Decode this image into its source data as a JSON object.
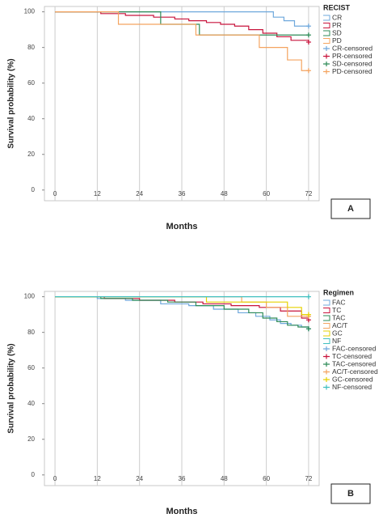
{
  "chart_data": [
    {
      "type": "step",
      "y_label": "Survival probability (%)",
      "x_label": "Months",
      "legend_title": "RECIST",
      "panel_label": "A",
      "xlim": [
        -3,
        75
      ],
      "ylim": [
        -6,
        103
      ],
      "xticks": [
        0,
        12,
        24,
        36,
        48,
        60,
        72
      ],
      "yticks": [
        0,
        20,
        40,
        60,
        80,
        100
      ],
      "grid": true,
      "series": [
        {
          "name": "CR",
          "color": "#6fa8dc",
          "x": [
            0,
            62,
            65,
            68,
            72
          ],
          "values": [
            100,
            97,
            95,
            92,
            92
          ],
          "censored": {
            "name": "CR-censored",
            "x": [
              72
            ],
            "values": [
              92
            ]
          }
        },
        {
          "name": "PR",
          "color": "#c8143c",
          "x": [
            0,
            13,
            20,
            28,
            34,
            38,
            43,
            47,
            51,
            55,
            59,
            63,
            67,
            72
          ],
          "values": [
            100,
            99,
            98,
            97,
            96,
            95,
            94,
            93,
            92,
            90,
            88,
            86,
            84,
            83
          ],
          "censored": {
            "name": "PR-censored",
            "x": [
              72
            ],
            "values": [
              83
            ]
          }
        },
        {
          "name": "SD",
          "color": "#2e8b57",
          "x": [
            0,
            30,
            41,
            72
          ],
          "values": [
            100,
            93,
            87,
            87
          ],
          "censored": {
            "name": "SD-censored",
            "x": [
              72
            ],
            "values": [
              87
            ]
          }
        },
        {
          "name": "PD",
          "color": "#f4a460",
          "x": [
            0,
            18,
            40,
            58,
            66,
            70,
            72
          ],
          "values": [
            100,
            93,
            87,
            80,
            73,
            67,
            67
          ],
          "censored": {
            "name": "PD-censored",
            "x": [
              72
            ],
            "values": [
              67
            ]
          }
        }
      ]
    },
    {
      "type": "step",
      "y_label": "Survival probability (%)",
      "x_label": "Months",
      "legend_title": "Regimen",
      "panel_label": "B",
      "xlim": [
        -3,
        75
      ],
      "ylim": [
        -6,
        103
      ],
      "xticks": [
        0,
        12,
        24,
        36,
        48,
        60,
        72
      ],
      "yticks": [
        0,
        20,
        40,
        60,
        80,
        100
      ],
      "grid": true,
      "series": [
        {
          "name": "FAC",
          "color": "#6fa8dc",
          "x": [
            0,
            12,
            20,
            30,
            38,
            45,
            52,
            57,
            61,
            64,
            67,
            70,
            72
          ],
          "values": [
            100,
            99,
            98,
            96,
            95,
            93,
            91,
            89,
            87,
            85,
            84,
            83,
            82
          ],
          "censored": {
            "name": "FAC-censored",
            "x": [
              72
            ],
            "values": [
              82
            ]
          }
        },
        {
          "name": "TC",
          "color": "#c8143c",
          "x": [
            0,
            14,
            24,
            34,
            42,
            50,
            58,
            64,
            70,
            72
          ],
          "values": [
            100,
            99,
            98,
            97,
            96,
            95,
            94,
            92,
            88,
            87
          ],
          "censored": {
            "name": "TC-censored",
            "x": [
              72
            ],
            "values": [
              87
            ]
          }
        },
        {
          "name": "TAC",
          "color": "#2e8b57",
          "x": [
            0,
            13,
            22,
            32,
            40,
            48,
            55,
            59,
            63,
            66,
            69,
            72
          ],
          "values": [
            100,
            99,
            98,
            97,
            95,
            93,
            91,
            88,
            86,
            84,
            83,
            82
          ],
          "censored": {
            "name": "TAC-censored",
            "x": [
              72
            ],
            "values": [
              82
            ]
          }
        },
        {
          "name": "AC/T",
          "color": "#f4a460",
          "x": [
            0,
            53,
            60,
            66,
            72
          ],
          "values": [
            100,
            97,
            94,
            89,
            89
          ],
          "censored": {
            "name": "AC/T-censored",
            "x": [
              72
            ],
            "values": [
              89
            ]
          }
        },
        {
          "name": "GC",
          "color": "#e6d200",
          "x": [
            0,
            43,
            66,
            70,
            72
          ],
          "values": [
            100,
            97,
            94,
            90,
            90
          ],
          "censored": {
            "name": "GC-censored",
            "x": [
              72
            ],
            "values": [
              90
            ]
          }
        },
        {
          "name": "NF",
          "color": "#40c0c0",
          "x": [
            0,
            72
          ],
          "values": [
            100,
            100
          ],
          "censored": {
            "name": "NF-censored",
            "x": [
              72
            ],
            "values": [
              100
            ]
          }
        }
      ]
    }
  ]
}
